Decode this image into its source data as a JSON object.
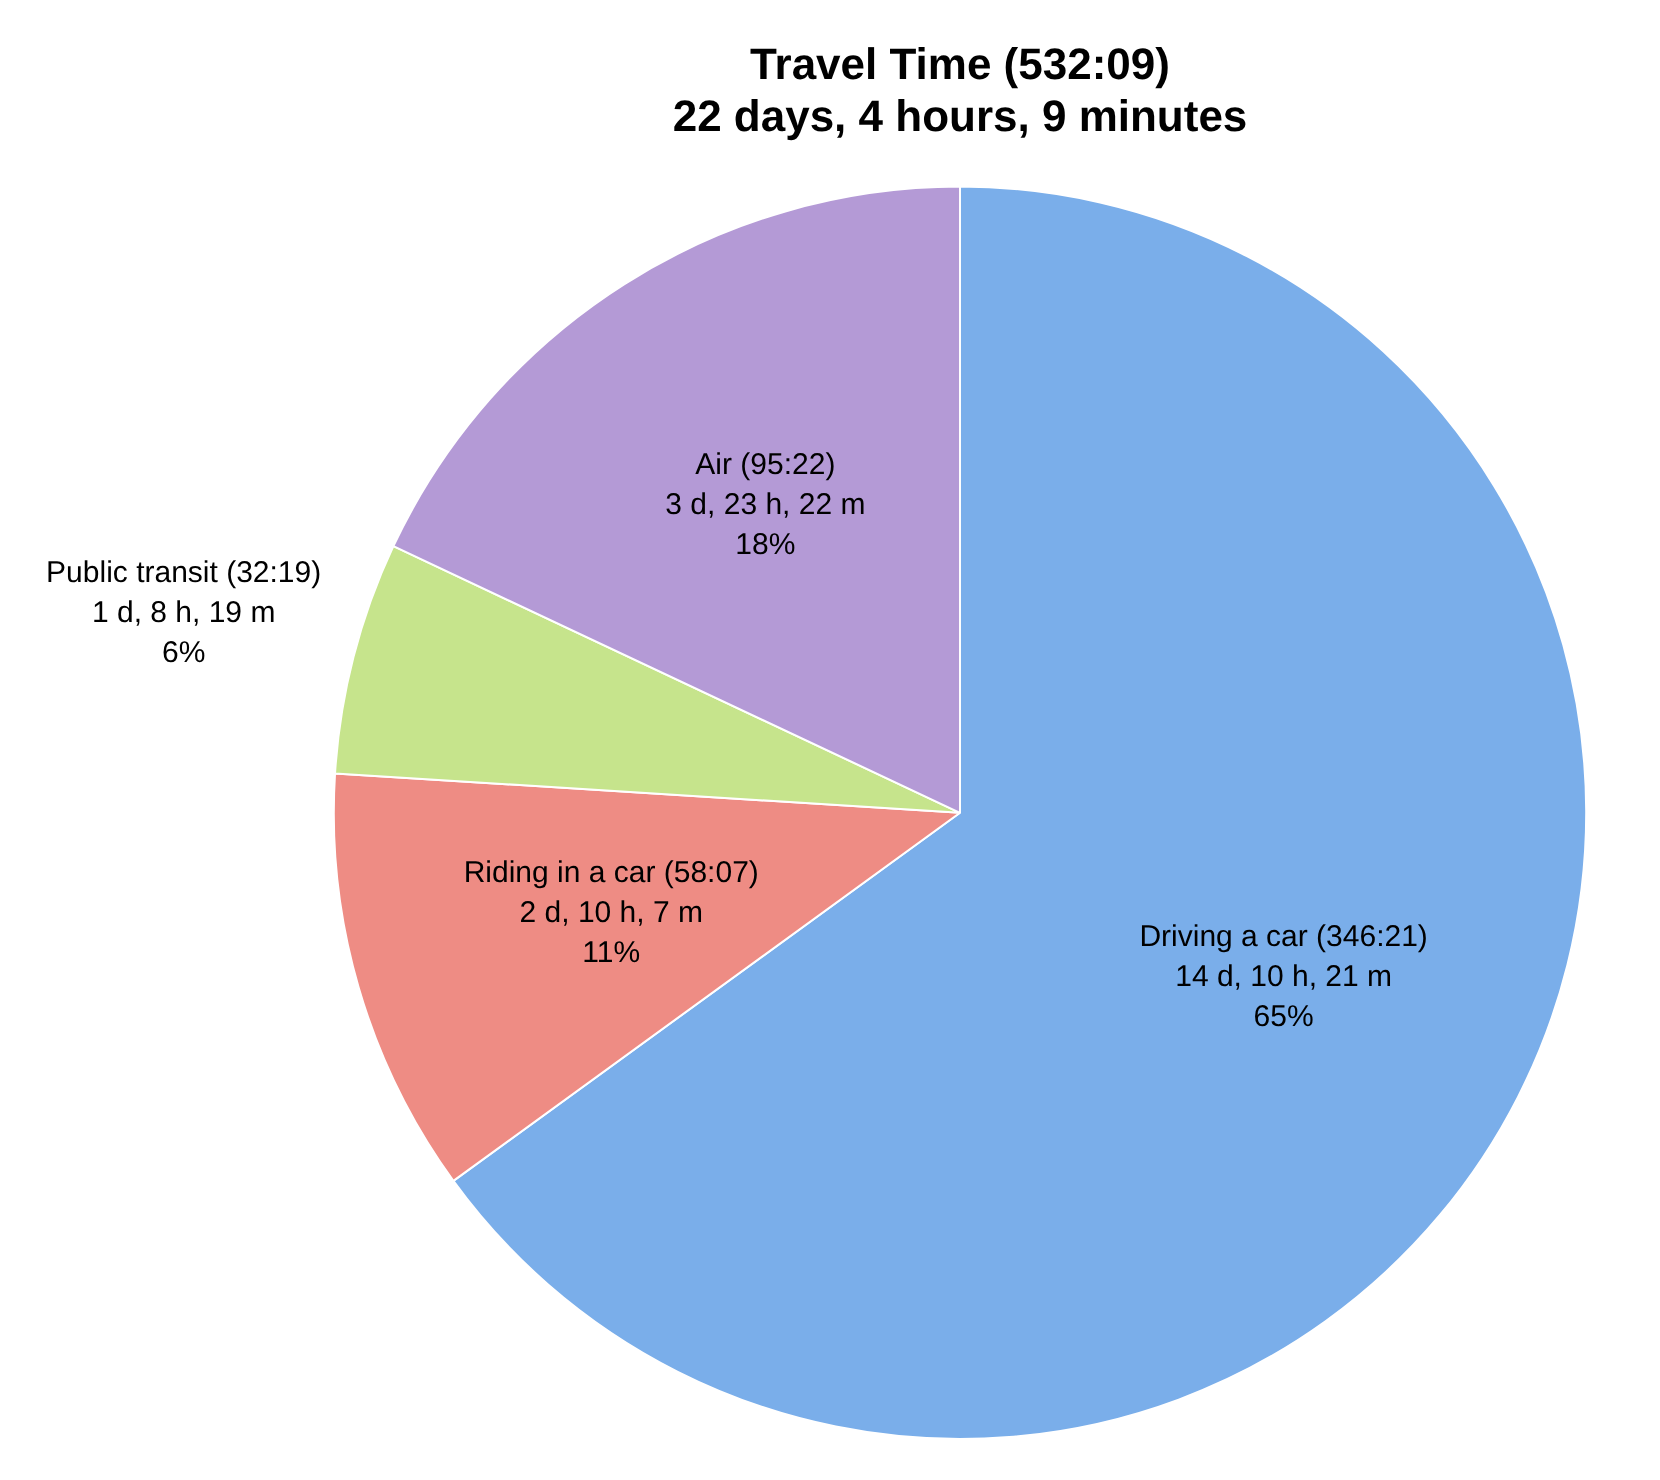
{
  "chart_data": {
    "type": "pie",
    "title": "Travel Time (532:09)\n22 days, 4 hours, 9 minutes",
    "categories": [
      "Driving a car (346:21)",
      "Riding in a car (58:07)",
      "Public transit (32:19)",
      "Air (95:22)"
    ],
    "values": [
      65,
      11,
      6,
      18
    ],
    "colors": [
      "#7aaeea",
      "#ee8c84",
      "#c6e48c",
      "#b49ad6"
    ],
    "value_labels": [
      "14 d, 10 h, 21 m\n65%",
      "2 d, 10 h, 7 m\n11%",
      "1 d, 8 h, 19 m\n6%",
      "3 d, 23 h, 22 m\n18%"
    ],
    "legend": false
  }
}
